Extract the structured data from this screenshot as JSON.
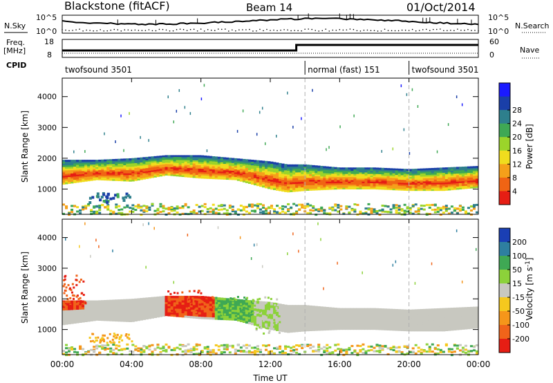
{
  "header": {
    "station": "Blackstone (fitACF)",
    "beam": "Beam 14",
    "date": "01/Oct/2014"
  },
  "top_panels": {
    "nsky_label": "N.Sky",
    "nsearch_label": "N.Search",
    "noise_ticks": [
      "10^5",
      "10^0"
    ],
    "freq_label_1": "Freq.",
    "freq_label_2": "[MHz]",
    "freq_ticks": [
      "18",
      "8"
    ],
    "nave_label": "Nave",
    "nave_ticks": [
      "60",
      "0"
    ],
    "cpid_label": "CPID",
    "cpid_segments": [
      {
        "name": "twofsound 3501",
        "start_h": 0,
        "end_h": 14
      },
      {
        "name": "normal (fast) 151",
        "start_h": 14,
        "end_h": 20
      },
      {
        "name": "twofsound 3501",
        "start_h": 20,
        "end_h": 24
      }
    ]
  },
  "chart_data": [
    {
      "type": "heatmap",
      "title": "",
      "xlabel": "Time UT",
      "ylabel": "Slant Range [km]",
      "xlim": [
        0,
        24
      ],
      "ylim": [
        180,
        4600
      ],
      "yticks": [
        1000,
        2000,
        3000,
        4000
      ],
      "colorbar": {
        "label": "Power [dB]",
        "ticks": [
          4,
          8,
          12,
          16,
          20,
          24,
          28
        ],
        "range": [
          0,
          30
        ],
        "colors": [
          "#1a1aff",
          "#1a3fa8",
          "#2e7f8c",
          "#3fa854",
          "#9bd42a",
          "#f0dc1e",
          "#f5a01a",
          "#f06414",
          "#e61e14"
        ]
      },
      "echo_band": [
        {
          "t": 0,
          "lo": 1150,
          "hi": 1950
        },
        {
          "t": 2,
          "lo": 1300,
          "hi": 1950
        },
        {
          "t": 4,
          "lo": 1250,
          "hi": 2000
        },
        {
          "t": 6,
          "lo": 1450,
          "hi": 2100
        },
        {
          "t": 8,
          "lo": 1350,
          "hi": 2100
        },
        {
          "t": 10,
          "lo": 1300,
          "hi": 2000
        },
        {
          "t": 12,
          "lo": 1000,
          "hi": 1900
        },
        {
          "t": 13,
          "lo": 900,
          "hi": 1800
        },
        {
          "t": 14,
          "lo": 950,
          "hi": 1800
        },
        {
          "t": 16,
          "lo": 1000,
          "hi": 1700
        },
        {
          "t": 18,
          "lo": 1000,
          "hi": 1700
        },
        {
          "t": 20,
          "lo": 950,
          "hi": 1650
        },
        {
          "t": 22,
          "lo": 950,
          "hi": 1700
        },
        {
          "t": 24,
          "lo": 1050,
          "hi": 1750
        }
      ]
    },
    {
      "type": "heatmap",
      "title": "",
      "xlabel": "Time UT",
      "ylabel": "Slant Range [km]",
      "xlim": [
        0,
        24
      ],
      "ylim": [
        180,
        4600
      ],
      "yticks": [
        1000,
        2000,
        3000,
        4000
      ],
      "xticks": [
        "00:00",
        "04:00",
        "08:00",
        "12:00",
        "16:00",
        "20:00",
        "00:00"
      ],
      "colorbar": {
        "label": "Velocity [m s^-1]",
        "ticks": [
          "200",
          "100",
          "50",
          "15",
          "-15",
          "-50",
          "-100",
          "-200"
        ],
        "colors": [
          "#1a3fb4",
          "#2e7fa0",
          "#3fa854",
          "#8cd23a",
          "#c8c8c0",
          "#f5c81e",
          "#f5961a",
          "#f0641a",
          "#e61e14"
        ]
      },
      "regions": [
        {
          "t0": 0.0,
          "t1": 1.3,
          "lo": 1800,
          "hi": 2800,
          "v": -200
        },
        {
          "t0": 6.0,
          "t1": 8.8,
          "lo": 1600,
          "hi": 2300,
          "v": -200
        },
        {
          "t0": 8.8,
          "t1": 11.0,
          "lo": 1400,
          "hi": 2100,
          "v": 50
        },
        {
          "t0": 11.0,
          "t1": 12.5,
          "lo": 900,
          "hi": 2100,
          "v": 15
        },
        {
          "t0": 0.0,
          "t1": 24.0,
          "lo": 1200,
          "hi": 1900,
          "v": 0
        },
        {
          "t0": 1.5,
          "t1": 4.0,
          "lo": 600,
          "hi": 900,
          "v": -50
        }
      ]
    }
  ]
}
